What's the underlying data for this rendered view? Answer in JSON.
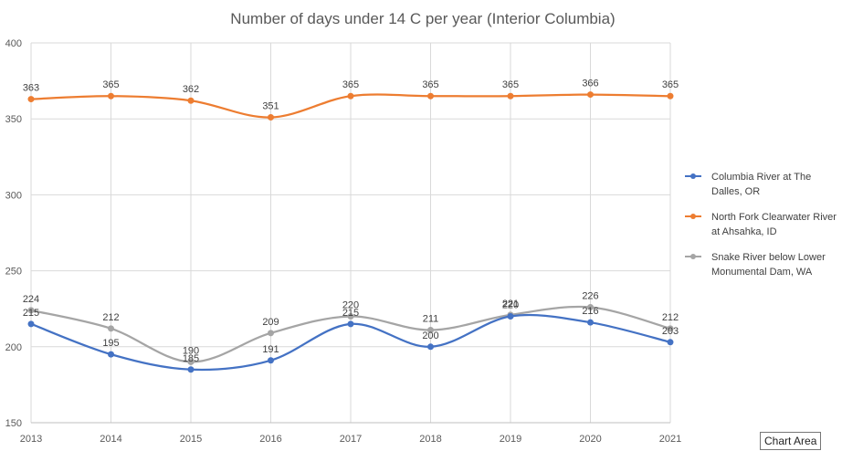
{
  "chart_data": {
    "type": "line",
    "title": "Number of days under 14 C per year (Interior Columbia)",
    "xlabel": "",
    "ylabel": "",
    "categories": [
      "2013",
      "2014",
      "2015",
      "2016",
      "2017",
      "2018",
      "2019",
      "2020",
      "2021"
    ],
    "ylim": [
      150,
      400
    ],
    "yticks": [
      150,
      200,
      250,
      300,
      350,
      400
    ],
    "grid": true,
    "legend": "right",
    "smooth": true,
    "series": [
      {
        "name": "Columbia River at The Dalles, OR",
        "color": "#4472C4",
        "values": [
          215,
          195,
          185,
          191,
          215,
          200,
          220,
          216,
          203
        ]
      },
      {
        "name": "North Fork Clearwater River at Ahsahka, ID",
        "color": "#ED7D31",
        "values": [
          363,
          365,
          362,
          351,
          365,
          365,
          365,
          366,
          365
        ]
      },
      {
        "name": "Snake River below Lower Monumental Dam, WA",
        "color": "#A5A5A5",
        "values": [
          224,
          212,
          190,
          209,
          220,
          211,
          221,
          226,
          212
        ]
      }
    ]
  },
  "tooltip": {
    "text": "Chart Area"
  }
}
